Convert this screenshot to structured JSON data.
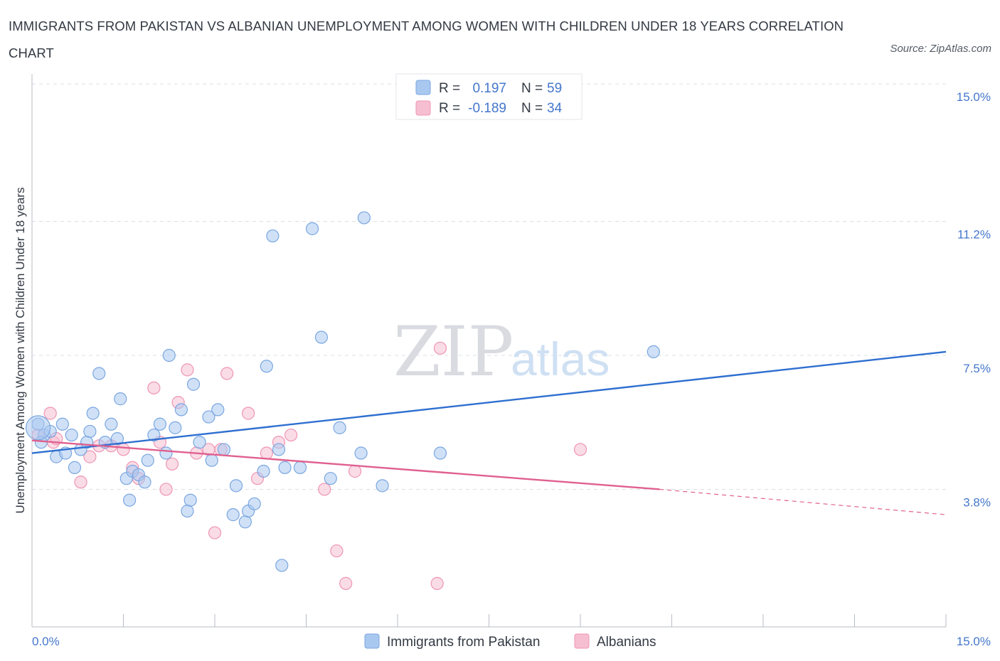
{
  "header": {
    "title": "IMMIGRANTS FROM PAKISTAN VS ALBANIAN UNEMPLOYMENT AMONG WOMEN WITH CHILDREN UNDER 18 YEARS CORRELATION CHART",
    "source": "Source: ZipAtlas.com"
  },
  "watermark": {
    "zip": "ZIP",
    "atlas": "atlas"
  },
  "colors": {
    "blue_fill": "#a9c8f0",
    "blue_stroke": "#7aa6e0",
    "blue_line": "#2f6fd0",
    "pink_fill": "#f6bfd1",
    "pink_stroke": "#ee95b3",
    "pink_line": "#e0608f"
  },
  "legend": {
    "rows": [
      {
        "r_label": "R =",
        "r_value": "0.197",
        "n_label": "N =",
        "n_value": "59"
      },
      {
        "r_label": "R =",
        "r_value": "-0.189",
        "n_label": "N =",
        "n_value": "34"
      }
    ],
    "bottom": [
      "Immigrants from Pakistan",
      "Albanians"
    ]
  },
  "chart_data": {
    "type": "scatter",
    "title": "IMMIGRANTS FROM PAKISTAN VS ALBANIAN UNEMPLOYMENT AMONG WOMEN WITH CHILDREN UNDER 18 YEARS CORRELATION CHART",
    "xlabel": "",
    "ylabel": "Unemployment Among Women with Children Under 18 years",
    "xlim": [
      0,
      15
    ],
    "ylim": [
      0,
      15
    ],
    "x_tick_labels": [
      "0.0%",
      "15.0%"
    ],
    "y_ticks": [
      3.8,
      7.5,
      11.2,
      15.0
    ],
    "y_tick_labels": [
      "3.8%",
      "7.5%",
      "11.2%",
      "15.0%"
    ],
    "grid": "horizontal dashed",
    "legend_position": "top-center",
    "series": [
      {
        "name": "Immigrants from Pakistan",
        "r": 0.197,
        "n": 59,
        "trend": {
          "x": [
            0,
            15
          ],
          "y": [
            4.8,
            7.6
          ]
        },
        "points": [
          [
            0.1,
            5.6
          ],
          [
            0.2,
            5.3
          ],
          [
            0.3,
            5.4
          ],
          [
            0.4,
            4.7
          ],
          [
            0.5,
            5.6
          ],
          [
            0.55,
            4.8
          ],
          [
            0.65,
            5.3
          ],
          [
            0.7,
            4.4
          ],
          [
            0.8,
            4.9
          ],
          [
            0.9,
            5.1
          ],
          [
            0.95,
            5.4
          ],
          [
            1.0,
            5.9
          ],
          [
            1.1,
            7.0
          ],
          [
            1.2,
            5.1
          ],
          [
            1.3,
            5.6
          ],
          [
            1.4,
            5.2
          ],
          [
            1.45,
            6.3
          ],
          [
            1.55,
            4.1
          ],
          [
            1.6,
            3.5
          ],
          [
            1.65,
            4.3
          ],
          [
            1.75,
            4.2
          ],
          [
            1.85,
            4.0
          ],
          [
            1.9,
            4.6
          ],
          [
            2.0,
            5.3
          ],
          [
            2.1,
            5.6
          ],
          [
            2.2,
            4.8
          ],
          [
            2.25,
            7.5
          ],
          [
            2.35,
            5.5
          ],
          [
            2.45,
            6.0
          ],
          [
            2.55,
            3.2
          ],
          [
            2.6,
            3.5
          ],
          [
            2.65,
            6.7
          ],
          [
            2.75,
            5.1
          ],
          [
            2.9,
            5.8
          ],
          [
            2.95,
            4.6
          ],
          [
            3.05,
            6.0
          ],
          [
            3.15,
            4.9
          ],
          [
            3.3,
            3.1
          ],
          [
            3.35,
            3.9
          ],
          [
            3.5,
            2.9
          ],
          [
            3.55,
            3.2
          ],
          [
            3.65,
            3.4
          ],
          [
            3.8,
            4.3
          ],
          [
            3.85,
            7.2
          ],
          [
            3.95,
            10.8
          ],
          [
            4.05,
            4.9
          ],
          [
            4.15,
            4.4
          ],
          [
            4.4,
            4.4
          ],
          [
            4.1,
            1.7
          ],
          [
            4.6,
            11.0
          ],
          [
            4.75,
            8.0
          ],
          [
            4.9,
            4.1
          ],
          [
            5.05,
            5.5
          ],
          [
            5.4,
            4.8
          ],
          [
            5.45,
            11.3
          ],
          [
            5.75,
            3.9
          ],
          [
            6.7,
            4.8
          ],
          [
            10.2,
            7.6
          ],
          [
            0.15,
            5.1
          ]
        ]
      },
      {
        "name": "Albanians",
        "r": -0.189,
        "n": 34,
        "trend": {
          "x": [
            0,
            10.3
          ],
          "y": [
            5.15,
            3.8
          ]
        },
        "trend_extension": {
          "x": [
            10.3,
            15
          ],
          "y": [
            3.8,
            3.1
          ]
        },
        "points": [
          [
            0.1,
            5.3
          ],
          [
            0.3,
            5.9
          ],
          [
            0.35,
            5.1
          ],
          [
            0.4,
            5.2
          ],
          [
            0.8,
            4.0
          ],
          [
            0.95,
            4.7
          ],
          [
            1.1,
            5.0
          ],
          [
            1.3,
            5.0
          ],
          [
            1.5,
            4.9
          ],
          [
            1.65,
            4.4
          ],
          [
            1.75,
            4.1
          ],
          [
            2.0,
            6.6
          ],
          [
            2.1,
            5.1
          ],
          [
            2.2,
            3.8
          ],
          [
            2.3,
            4.5
          ],
          [
            2.4,
            6.2
          ],
          [
            2.55,
            7.1
          ],
          [
            2.7,
            4.8
          ],
          [
            2.9,
            4.9
          ],
          [
            3.0,
            2.6
          ],
          [
            3.1,
            4.9
          ],
          [
            3.2,
            7.0
          ],
          [
            3.55,
            5.9
          ],
          [
            3.7,
            4.1
          ],
          [
            3.85,
            4.8
          ],
          [
            4.05,
            5.1
          ],
          [
            4.25,
            5.3
          ],
          [
            4.8,
            3.8
          ],
          [
            5.0,
            2.1
          ],
          [
            5.15,
            1.2
          ],
          [
            5.3,
            4.3
          ],
          [
            6.7,
            7.7
          ],
          [
            6.65,
            1.2
          ],
          [
            9.0,
            4.9
          ]
        ]
      }
    ]
  }
}
